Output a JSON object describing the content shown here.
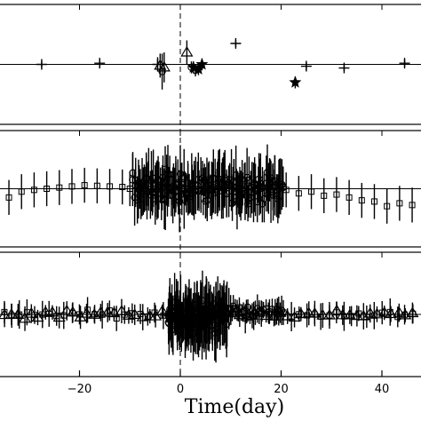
{
  "chart_data": {
    "type": "scatter",
    "xlabel": "Time(day)",
    "xlim": [
      -35,
      47
    ],
    "xticks": [
      -20,
      0,
      20,
      40
    ],
    "event_line_x": 0,
    "panels": [
      {
        "id": "top",
        "ylim": [
          -1,
          1
        ],
        "reference_y": 0,
        "series": [
          {
            "marker": "plus",
            "points": [
              [
                -27.5,
                0.0,
                0.05
              ],
              [
                -16,
                0.02,
                0.06
              ],
              [
                -4.5,
                0.0,
                0.12
              ],
              [
                11,
                0.35,
                0.06
              ],
              [
                25,
                -0.03,
                0.06
              ],
              [
                32.5,
                -0.06,
                0.05
              ],
              [
                44.5,
                0.02,
                0.06
              ]
            ]
          },
          {
            "marker": "triangle",
            "points": [
              [
                -4,
                -0.02,
                0.2
              ],
              [
                -3.2,
                -0.05,
                0.25
              ],
              [
                1.3,
                0.2,
                0.2
              ]
            ]
          },
          {
            "marker": "circle",
            "points": [
              [
                -3.6,
                -0.12,
                0.3
              ],
              [
                2.2,
                -0.05,
                0.1
              ],
              [
                3.0,
                -0.1,
                0.1
              ]
            ]
          },
          {
            "marker": "star",
            "points": [
              [
                2.6,
                -0.05,
                0.1
              ],
              [
                3.6,
                -0.08,
                0.1
              ],
              [
                4.3,
                0.0,
                0.1
              ],
              [
                22.8,
                -0.3,
                0.1
              ]
            ]
          }
        ]
      },
      {
        "id": "middle",
        "ylim": [
          -1,
          1
        ],
        "reference_y": 0,
        "series": [
          {
            "marker": "square",
            "points": [
              [
                -34,
                -0.15,
                0.3
              ],
              [
                -31.5,
                -0.05,
                0.3
              ],
              [
                -29,
                -0.02,
                0.3
              ],
              [
                -26.5,
                0.0,
                0.3
              ],
              [
                -24,
                0.02,
                0.3
              ],
              [
                -21.5,
                0.04,
                0.3
              ],
              [
                -19,
                0.06,
                0.3
              ],
              [
                -16.5,
                0.05,
                0.3
              ],
              [
                -14,
                0.04,
                0.3
              ],
              [
                -11.5,
                0.03,
                0.3
              ],
              [
                -10,
                0.0,
                0.3
              ],
              [
                21,
                -0.02,
                0.3
              ],
              [
                23.5,
                -0.08,
                0.3
              ],
              [
                26,
                -0.05,
                0.3
              ],
              [
                28.5,
                -0.12,
                0.3
              ],
              [
                31,
                -0.1,
                0.3
              ],
              [
                33.5,
                -0.15,
                0.3
              ],
              [
                36,
                -0.2,
                0.3
              ],
              [
                38.5,
                -0.22,
                0.3
              ],
              [
                41,
                -0.3,
                0.3
              ],
              [
                43.5,
                -0.25,
                0.3
              ],
              [
                46,
                -0.28,
                0.3
              ]
            ]
          },
          {
            "marker": "circle",
            "note_free": true,
            "dense_range": [
              -9.5,
              20.5
            ],
            "count": 170,
            "mean": 0.02,
            "spread": 0.5,
            "err": 0.45
          }
        ]
      },
      {
        "id": "bottom",
        "ylim": [
          -1,
          1
        ],
        "reference_y": 0,
        "series": [
          {
            "marker": "triangle",
            "range": [
              -35,
              46
            ],
            "count": 60,
            "mean": 0.0,
            "spread": 0.12,
            "err": 0.18
          },
          {
            "marker": "square",
            "range": [
              -35,
              46
            ],
            "count": 55,
            "mean": 0.0,
            "spread": 0.12,
            "err": 0.2
          },
          {
            "marker": "circle",
            "dense_range": [
              -2.5,
              9.5
            ],
            "count": 120,
            "mean": -0.05,
            "spread": 0.45,
            "err": 0.45
          },
          {
            "marker": "circle",
            "dense_range": [
              9.5,
              20
            ],
            "count": 25,
            "mean": 0.05,
            "spread": 0.15,
            "err": 0.2
          }
        ]
      }
    ]
  }
}
